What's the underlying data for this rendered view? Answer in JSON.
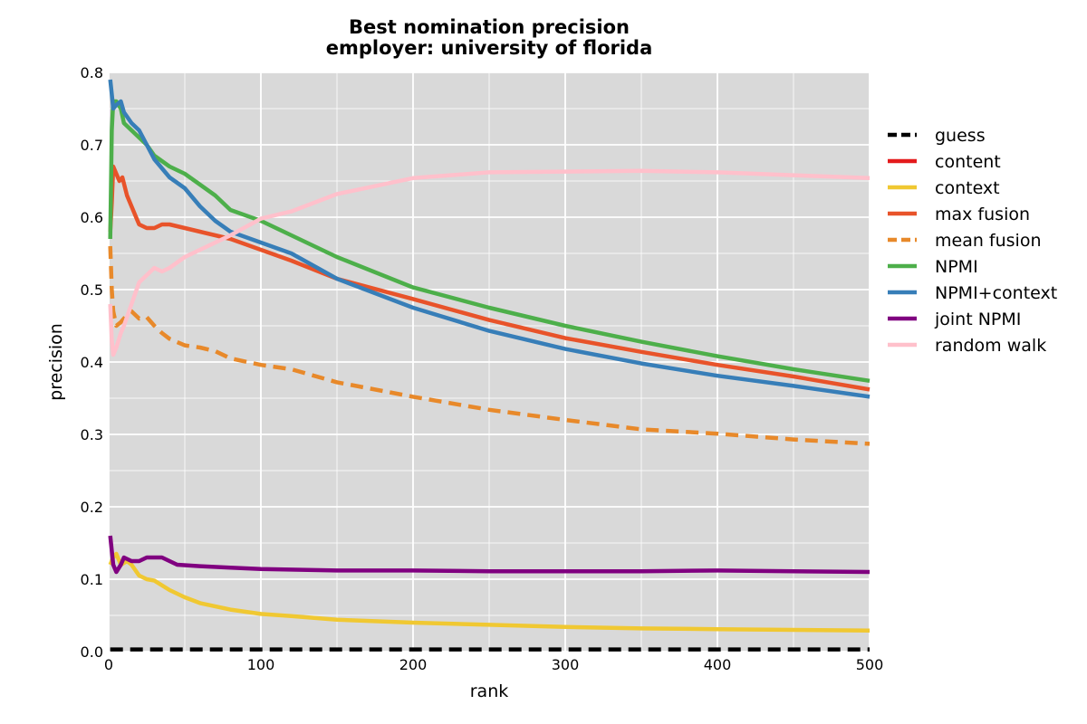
{
  "chart_data": {
    "type": "line",
    "title": "Best nomination precision",
    "subtitle": "employer: university of florida",
    "xlabel": "rank",
    "ylabel": "precision",
    "xlim": [
      0,
      500
    ],
    "ylim": [
      0.0,
      0.8
    ],
    "xticks": [
      0,
      100,
      200,
      300,
      400,
      500
    ],
    "yticks": [
      0.0,
      0.1,
      0.2,
      0.3,
      0.4,
      0.5,
      0.6,
      0.7,
      0.8
    ],
    "grid": true,
    "legend_placement": "right-outside",
    "colors": {
      "background": "#d9d9d9",
      "grid": "#ffffff"
    },
    "series": [
      {
        "name": "guess",
        "color": "#000000",
        "dashed": true,
        "points": [
          [
            1,
            0.003
          ],
          [
            500,
            0.003
          ]
        ]
      },
      {
        "name": "content",
        "color": "#e41a1c",
        "dashed": false,
        "points": []
      },
      {
        "name": "context",
        "color": "#f0c832",
        "dashed": false,
        "points": [
          [
            1,
            0.12
          ],
          [
            3,
            0.13
          ],
          [
            5,
            0.135
          ],
          [
            8,
            0.12
          ],
          [
            12,
            0.125
          ],
          [
            15,
            0.12
          ],
          [
            20,
            0.105
          ],
          [
            25,
            0.1
          ],
          [
            30,
            0.098
          ],
          [
            40,
            0.085
          ],
          [
            50,
            0.075
          ],
          [
            60,
            0.067
          ],
          [
            80,
            0.058
          ],
          [
            100,
            0.052
          ],
          [
            120,
            0.049
          ],
          [
            150,
            0.044
          ],
          [
            200,
            0.04
          ],
          [
            250,
            0.037
          ],
          [
            300,
            0.034
          ],
          [
            350,
            0.032
          ],
          [
            400,
            0.031
          ],
          [
            450,
            0.03
          ],
          [
            500,
            0.029
          ]
        ]
      },
      {
        "name": "max fusion",
        "color": "#e8532a",
        "dashed": false,
        "points": [
          [
            1,
            0.58
          ],
          [
            2,
            0.62
          ],
          [
            3,
            0.67
          ],
          [
            5,
            0.66
          ],
          [
            7,
            0.65
          ],
          [
            9,
            0.655
          ],
          [
            12,
            0.63
          ],
          [
            15,
            0.615
          ],
          [
            18,
            0.6
          ],
          [
            20,
            0.59
          ],
          [
            25,
            0.585
          ],
          [
            30,
            0.585
          ],
          [
            35,
            0.59
          ],
          [
            40,
            0.59
          ],
          [
            50,
            0.585
          ],
          [
            60,
            0.58
          ],
          [
            70,
            0.575
          ],
          [
            80,
            0.57
          ],
          [
            100,
            0.555
          ],
          [
            120,
            0.54
          ],
          [
            150,
            0.515
          ],
          [
            200,
            0.487
          ],
          [
            250,
            0.458
          ],
          [
            300,
            0.433
          ],
          [
            350,
            0.414
          ],
          [
            400,
            0.396
          ],
          [
            450,
            0.38
          ],
          [
            500,
            0.362
          ]
        ]
      },
      {
        "name": "mean fusion",
        "color": "#e8892a",
        "dashed": true,
        "points": [
          [
            1,
            0.56
          ],
          [
            2,
            0.5
          ],
          [
            3,
            0.47
          ],
          [
            5,
            0.45
          ],
          [
            8,
            0.455
          ],
          [
            12,
            0.465
          ],
          [
            15,
            0.47
          ],
          [
            20,
            0.46
          ],
          [
            25,
            0.462
          ],
          [
            30,
            0.45
          ],
          [
            35,
            0.44
          ],
          [
            40,
            0.432
          ],
          [
            50,
            0.423
          ],
          [
            60,
            0.42
          ],
          [
            70,
            0.415
          ],
          [
            80,
            0.405
          ],
          [
            100,
            0.396
          ],
          [
            120,
            0.39
          ],
          [
            150,
            0.372
          ],
          [
            200,
            0.352
          ],
          [
            250,
            0.334
          ],
          [
            300,
            0.32
          ],
          [
            350,
            0.307
          ],
          [
            400,
            0.301
          ],
          [
            450,
            0.293
          ],
          [
            500,
            0.287
          ]
        ]
      },
      {
        "name": "NPMI",
        "color": "#4daf4a",
        "dashed": false,
        "points": [
          [
            1,
            0.57
          ],
          [
            2,
            0.72
          ],
          [
            3,
            0.76
          ],
          [
            5,
            0.76
          ],
          [
            8,
            0.75
          ],
          [
            10,
            0.73
          ],
          [
            15,
            0.72
          ],
          [
            20,
            0.71
          ],
          [
            25,
            0.7
          ],
          [
            30,
            0.685
          ],
          [
            40,
            0.67
          ],
          [
            50,
            0.66
          ],
          [
            60,
            0.645
          ],
          [
            70,
            0.63
          ],
          [
            80,
            0.61
          ],
          [
            100,
            0.595
          ],
          [
            120,
            0.575
          ],
          [
            150,
            0.545
          ],
          [
            200,
            0.503
          ],
          [
            250,
            0.475
          ],
          [
            300,
            0.45
          ],
          [
            350,
            0.428
          ],
          [
            400,
            0.408
          ],
          [
            450,
            0.39
          ],
          [
            500,
            0.374
          ]
        ]
      },
      {
        "name": "NPMI+context",
        "color": "#377eb8",
        "dashed": false,
        "points": [
          [
            1,
            0.79
          ],
          [
            2,
            0.77
          ],
          [
            3,
            0.75
          ],
          [
            5,
            0.755
          ],
          [
            8,
            0.76
          ],
          [
            10,
            0.745
          ],
          [
            15,
            0.73
          ],
          [
            20,
            0.72
          ],
          [
            25,
            0.7
          ],
          [
            30,
            0.68
          ],
          [
            40,
            0.655
          ],
          [
            50,
            0.64
          ],
          [
            60,
            0.615
          ],
          [
            70,
            0.595
          ],
          [
            80,
            0.58
          ],
          [
            100,
            0.565
          ],
          [
            120,
            0.55
          ],
          [
            150,
            0.515
          ],
          [
            200,
            0.475
          ],
          [
            250,
            0.443
          ],
          [
            300,
            0.418
          ],
          [
            350,
            0.398
          ],
          [
            400,
            0.381
          ],
          [
            450,
            0.367
          ],
          [
            500,
            0.352
          ]
        ]
      },
      {
        "name": "joint NPMI",
        "color": "#800080",
        "dashed": false,
        "points": [
          [
            1,
            0.16
          ],
          [
            3,
            0.12
          ],
          [
            5,
            0.11
          ],
          [
            8,
            0.12
          ],
          [
            10,
            0.13
          ],
          [
            15,
            0.125
          ],
          [
            20,
            0.125
          ],
          [
            25,
            0.13
          ],
          [
            35,
            0.13
          ],
          [
            45,
            0.12
          ],
          [
            60,
            0.118
          ],
          [
            80,
            0.116
          ],
          [
            100,
            0.114
          ],
          [
            150,
            0.112
          ],
          [
            200,
            0.112
          ],
          [
            250,
            0.111
          ],
          [
            300,
            0.111
          ],
          [
            350,
            0.111
          ],
          [
            400,
            0.112
          ],
          [
            450,
            0.111
          ],
          [
            500,
            0.11
          ]
        ]
      },
      {
        "name": "random walk",
        "color": "#ffc0cb",
        "dashed": false,
        "points": [
          [
            1,
            0.48
          ],
          [
            2,
            0.43
          ],
          [
            3,
            0.41
          ],
          [
            5,
            0.42
          ],
          [
            8,
            0.44
          ],
          [
            10,
            0.45
          ],
          [
            15,
            0.48
          ],
          [
            20,
            0.51
          ],
          [
            25,
            0.52
          ],
          [
            30,
            0.53
          ],
          [
            35,
            0.525
          ],
          [
            40,
            0.53
          ],
          [
            50,
            0.545
          ],
          [
            60,
            0.555
          ],
          [
            80,
            0.575
          ],
          [
            100,
            0.598
          ],
          [
            120,
            0.608
          ],
          [
            150,
            0.632
          ],
          [
            200,
            0.654
          ],
          [
            250,
            0.662
          ],
          [
            300,
            0.663
          ],
          [
            350,
            0.664
          ],
          [
            400,
            0.662
          ],
          [
            450,
            0.658
          ],
          [
            500,
            0.654
          ]
        ]
      }
    ]
  }
}
